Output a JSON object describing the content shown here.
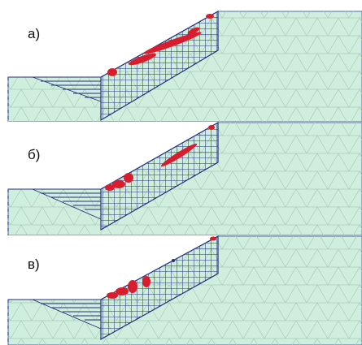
{
  "panels": [
    {
      "id": "a",
      "label": "а)"
    },
    {
      "id": "b",
      "label": "б)"
    },
    {
      "id": "c",
      "label": "в)"
    }
  ],
  "colors": {
    "soil_fill": "#cfeedd",
    "mesh_line": "#9ec9b3",
    "grid_line": "#26307a",
    "outline": "#4a6aa8",
    "damage": "#d81e2e",
    "background": "#ffffff"
  }
}
